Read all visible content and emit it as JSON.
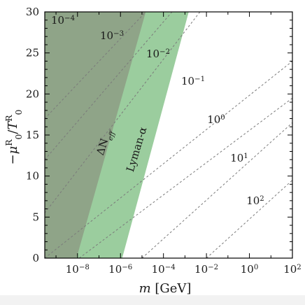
{
  "chart_data": {
    "type": "line",
    "xscale": "log",
    "xlabel_main": "m",
    "xlabel_unit": "[GeV]",
    "ylabel": {
      "sign": "−",
      "mu": "μ",
      "sub": "0",
      "sup": "R",
      "slash": "/",
      "T": "T"
    },
    "xlim": [
      3e-10,
      100
    ],
    "ylim": [
      0,
      30
    ],
    "xticks": [
      {
        "value": 1e-08,
        "base": "10",
        "exp": "−8"
      },
      {
        "value": 1e-06,
        "base": "10",
        "exp": "−6"
      },
      {
        "value": 0.0001,
        "base": "10",
        "exp": "−4"
      },
      {
        "value": 0.01,
        "base": "10",
        "exp": "−2"
      },
      {
        "value": 1,
        "base": "10",
        "exp": "0"
      },
      {
        "value": 100,
        "base": "10",
        "exp": "2"
      }
    ],
    "yticks": [
      "0",
      "5",
      "10",
      "15",
      "20",
      "25",
      "30"
    ],
    "regions": [
      {
        "name": "ΔN_eff",
        "label_main": "ΔN",
        "label_sub": "eff",
        "color": "#8fa488",
        "edge": [
          [
            9e-09,
            0
          ],
          [
            1.5e-05,
            30
          ]
        ]
      },
      {
        "name": "Lyman-α",
        "label": "Lyman-α",
        "color": "#9bcd9e",
        "edge": [
          [
            1.2e-06,
            0
          ],
          [
            0.0015,
            30
          ]
        ]
      }
    ],
    "contours": [
      {
        "base": "10",
        "exp": "−4",
        "points": [
          [
            3e-10,
            17
          ],
          [
            1.5e-05,
            30
          ]
        ]
      },
      {
        "base": "10",
        "exp": "−3",
        "points": [
          [
            3e-10,
            12
          ],
          [
            0.00025,
            30
          ]
        ]
      },
      {
        "base": "10",
        "exp": "−2",
        "points": [
          [
            3e-10,
            5.5
          ],
          [
            0.005,
            30
          ]
        ]
      },
      {
        "base": "10",
        "exp": "−1",
        "points": [
          [
            3e-10,
            0
          ],
          [
            100,
            24
          ]
        ]
      },
      {
        "base": "10",
        "exp": "0",
        "points": [
          [
            1.2e-08,
            0
          ],
          [
            100,
            19.5
          ]
        ]
      },
      {
        "base": "10",
        "exp": "1",
        "points": [
          [
            1e-05,
            0
          ],
          [
            100,
            16.5
          ]
        ]
      },
      {
        "base": "10",
        "exp": "2",
        "points": [
          [
            0.01,
            0
          ],
          [
            100,
            9.5
          ]
        ]
      }
    ],
    "colors": {
      "frame": "#000000",
      "contour": "#7a7a7a",
      "text": "#1a1a1a"
    }
  }
}
